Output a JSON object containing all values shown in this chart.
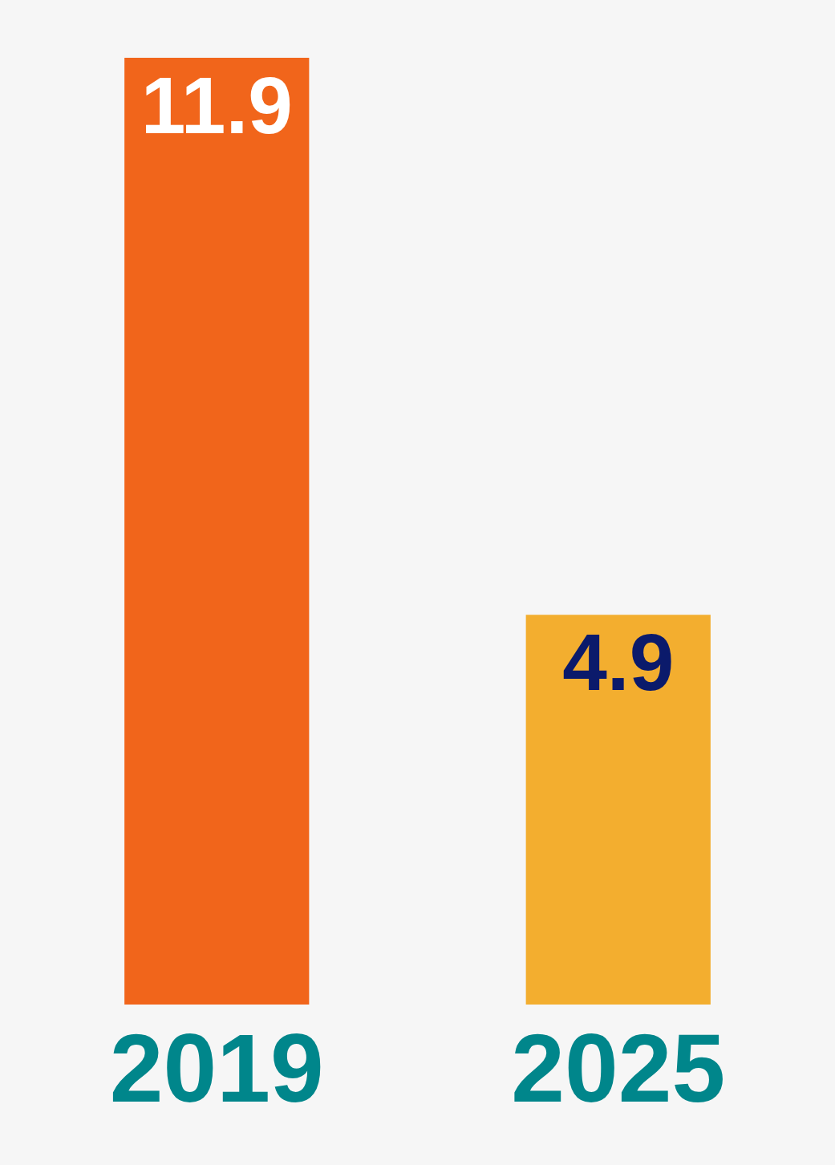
{
  "chart_data": {
    "type": "bar",
    "categories": [
      "2019",
      "2025"
    ],
    "values": [
      11.9,
      4.9
    ],
    "colors": [
      "#f1651b",
      "#f3ae2f"
    ],
    "data_labels": true,
    "grid": false
  }
}
